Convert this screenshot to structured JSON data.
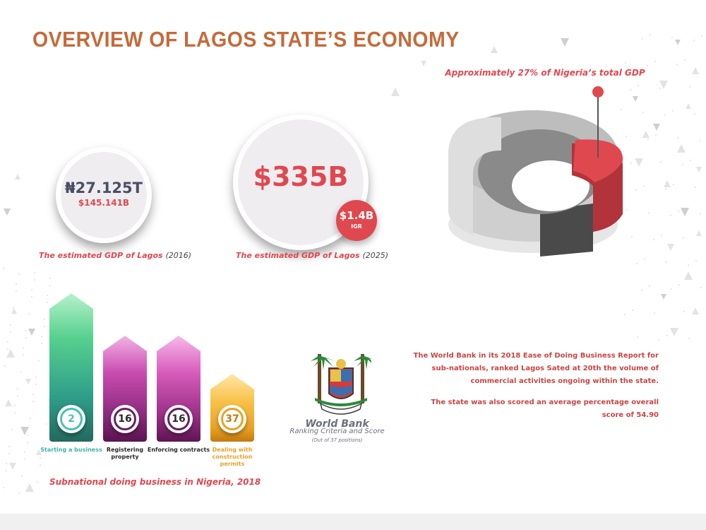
{
  "title": "OVERVIEW OF LAGOS STATE’S ECONOMY",
  "gdp_2016": {
    "value_naira": "₦27.125T",
    "value_usd": "$145.141B",
    "caption": "The estimated GDP of Lagos",
    "year": "(2016)"
  },
  "gdp_2025": {
    "value": "$335B",
    "igr_value": "$1.4B",
    "igr_label": "IGR",
    "caption": "The estimated GDP of Lagos",
    "year": "(2025)"
  },
  "share": {
    "caption": "Approximately 27% of Nigeria’s total GDP",
    "fraction": 0.27
  },
  "doing_business": {
    "title": "Subnational doing business in Nigeria, 2018",
    "items": [
      {
        "rank": "2",
        "label": "Starting a business",
        "color": "#49c2b3"
      },
      {
        "rank": "16",
        "label": "Registering property",
        "color": "#6a1f62"
      },
      {
        "rank": "16",
        "label": "Enforcing contracts",
        "color": "#6a1f62"
      },
      {
        "rank": "37",
        "label": "Dealing with construction permits",
        "color": "#e9a225"
      }
    ]
  },
  "world_bank": {
    "title": "World Bank",
    "subtitle": "Ranking Criteria and Score",
    "note": "(Out of 37 positions)"
  },
  "report": {
    "paragraph1": "The World Bank in its 2018 Ease of Doing Business Report for sub-nationals, ranked Lagos Sated at 20th the volume of commercial activities ongoing within the state.",
    "paragraph2": "The state was also scored an average percentage overall score of 54.90"
  },
  "colors": {
    "accent": "#e0484f",
    "title": "#c56a3a",
    "dark_text": "#4b4f63"
  }
}
